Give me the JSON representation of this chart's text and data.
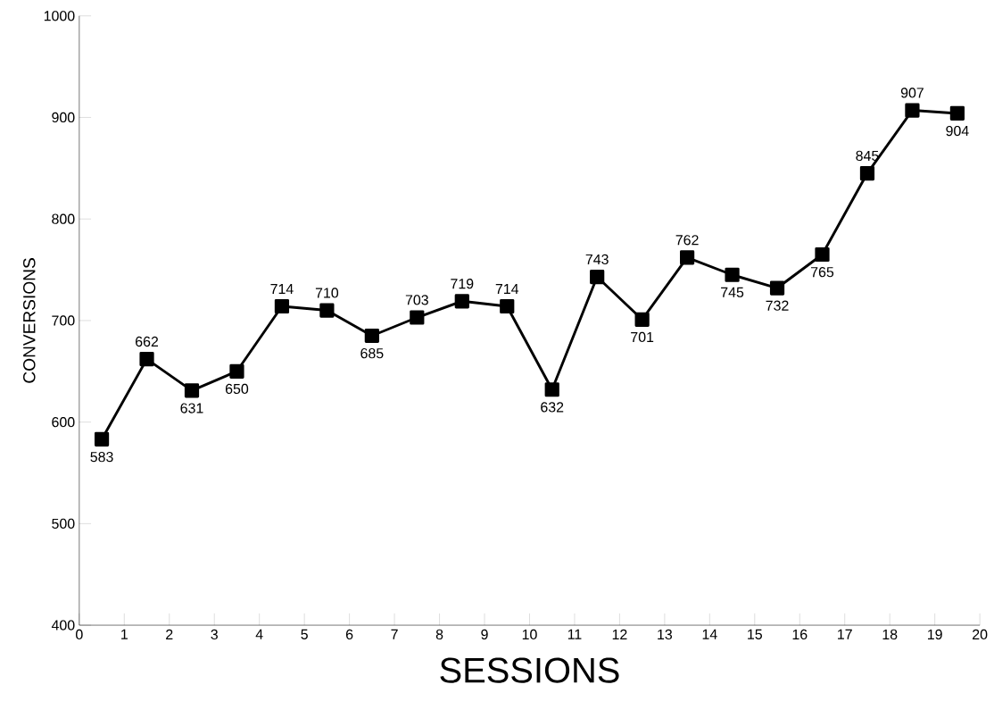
{
  "chart_data": {
    "type": "line",
    "xlabel": "SESSIONS",
    "ylabel": "CONVERSIONS",
    "x": [
      0.5,
      1.5,
      2.5,
      3.5,
      4.5,
      5.5,
      6.5,
      7.5,
      8.5,
      9.5,
      10.5,
      11.5,
      12.5,
      13.5,
      14.5,
      15.5,
      16.5,
      17.5,
      18.5,
      19.5
    ],
    "series": [
      {
        "color": "#000000",
        "values": [
          583,
          662,
          631,
          650,
          714,
          710,
          685,
          703,
          719,
          714,
          632,
          743,
          701,
          762,
          745,
          732,
          765,
          845,
          907,
          904
        ]
      }
    ],
    "xlim": [
      0,
      20
    ],
    "xticks": [
      0,
      1,
      2,
      3,
      4,
      5,
      6,
      7,
      8,
      9,
      10,
      11,
      12,
      13,
      14,
      15,
      16,
      17,
      18,
      19,
      20
    ],
    "ylim": [
      400,
      1000
    ],
    "yticks": [
      400,
      500,
      600,
      700,
      800,
      900,
      1000
    ],
    "marker": "square",
    "line_style": "solid",
    "data_labels": true,
    "grid": false
  }
}
